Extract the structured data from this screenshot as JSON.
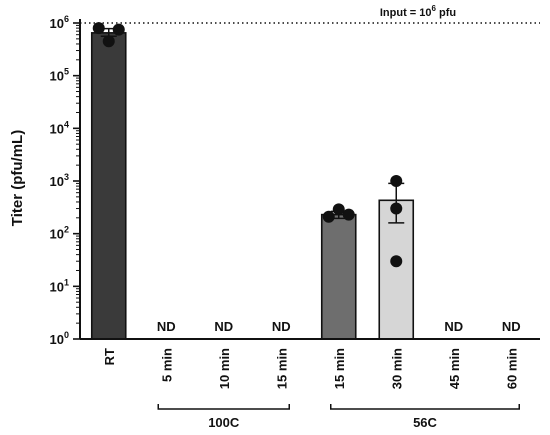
{
  "chart_data": {
    "type": "bar",
    "ylabel": "Titer (pfu/mL)",
    "yscale": "log",
    "ylim": [
      1,
      1000000
    ],
    "y_ticks": [
      {
        "base": "10",
        "exp": "0"
      },
      {
        "base": "10",
        "exp": "1"
      },
      {
        "base": "10",
        "exp": "2"
      },
      {
        "base": "10",
        "exp": "3"
      },
      {
        "base": "10",
        "exp": "4"
      },
      {
        "base": "10",
        "exp": "5"
      },
      {
        "base": "10",
        "exp": "6"
      }
    ],
    "categories": [
      "RT",
      "5 min",
      "10 min",
      "15 min",
      "15 min",
      "30 min",
      "45 min",
      "60 min"
    ],
    "bars": [
      {
        "value": 650000,
        "err_low": 560000,
        "err_high": 780000,
        "points": [
          800000,
          450000,
          750000
        ],
        "color": "#3a3a3a"
      },
      {
        "value": null,
        "nd": "ND"
      },
      {
        "value": null,
        "nd": "ND"
      },
      {
        "value": null,
        "nd": "ND"
      },
      {
        "value": 230,
        "err_low": 195,
        "err_high": 265,
        "points": [
          210,
          290,
          230
        ],
        "color": "#6e6e6e"
      },
      {
        "value": 430,
        "err_low": 160,
        "err_high": 900,
        "points": [
          1000,
          300,
          30
        ],
        "color": "#d6d6d6"
      },
      {
        "value": null,
        "nd": "ND"
      },
      {
        "value": null,
        "nd": "ND"
      }
    ],
    "groups": [
      {
        "label": "100C",
        "from": 1,
        "to": 3
      },
      {
        "label": "56C",
        "from": 4,
        "to": 7
      }
    ],
    "reference_line": {
      "value": 1000000,
      "label_text": "Input = 10",
      "label_exp": "6",
      "label_unit": " pfu",
      "style": "dotted"
    },
    "grid": false
  }
}
